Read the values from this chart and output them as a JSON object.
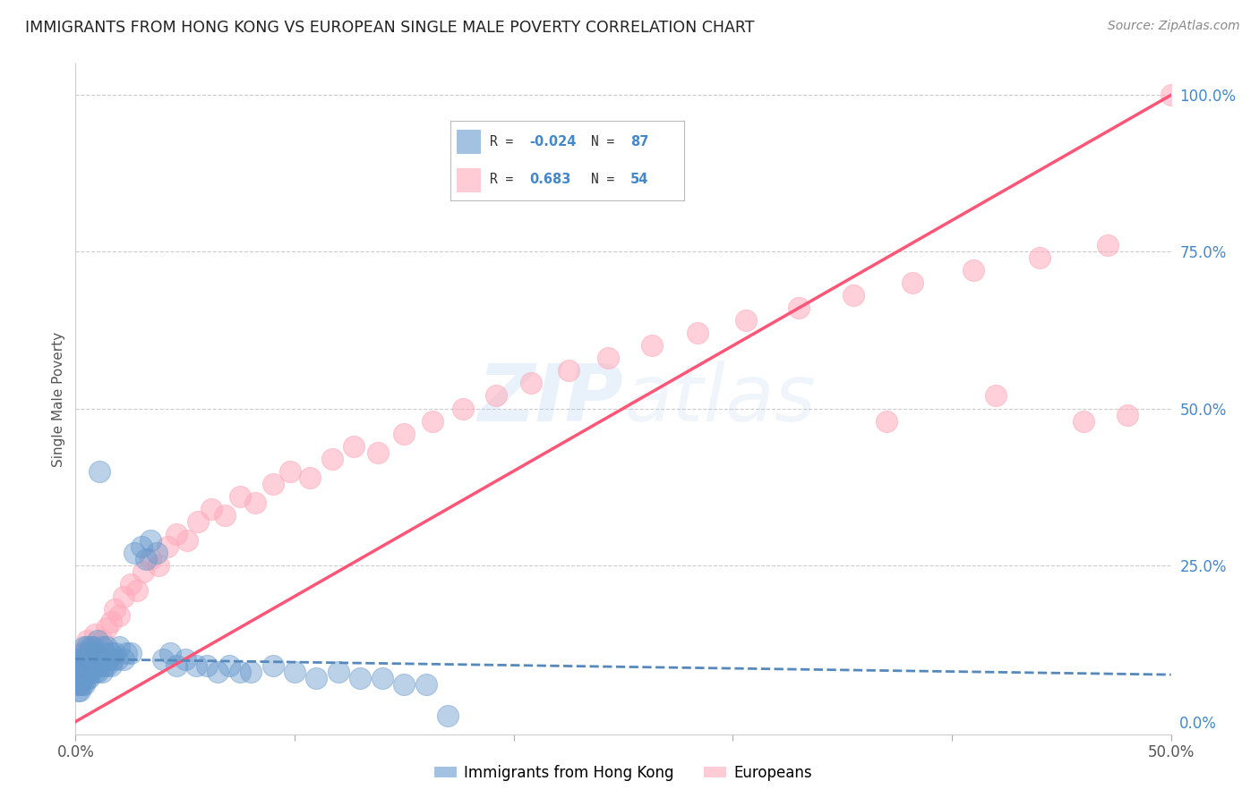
{
  "title": "IMMIGRANTS FROM HONG KONG VS EUROPEAN SINGLE MALE POVERTY CORRELATION CHART",
  "source": "Source: ZipAtlas.com",
  "ylabel": "Single Male Poverty",
  "xlim": [
    0.0,
    0.5
  ],
  "ylim": [
    -0.02,
    1.05
  ],
  "hk_color": "#6699cc",
  "eu_color": "#ffaabb",
  "hk_line_color": "#5588bb",
  "eu_line_color": "#ff5577",
  "hk_R": -0.024,
  "hk_N": 87,
  "eu_R": 0.683,
  "eu_N": 54,
  "legend_label_hk": "Immigrants from Hong Kong",
  "legend_label_eu": "Europeans",
  "watermark": "ZIPatlas",
  "hk_scatter_x": [
    0.0005,
    0.001,
    0.001,
    0.001,
    0.001,
    0.002,
    0.002,
    0.002,
    0.002,
    0.002,
    0.003,
    0.003,
    0.003,
    0.003,
    0.003,
    0.004,
    0.004,
    0.004,
    0.004,
    0.004,
    0.004,
    0.005,
    0.005,
    0.005,
    0.005,
    0.005,
    0.006,
    0.006,
    0.006,
    0.006,
    0.007,
    0.007,
    0.007,
    0.007,
    0.008,
    0.008,
    0.008,
    0.009,
    0.009,
    0.009,
    0.01,
    0.01,
    0.01,
    0.01,
    0.011,
    0.011,
    0.012,
    0.012,
    0.012,
    0.013,
    0.013,
    0.014,
    0.014,
    0.015,
    0.016,
    0.016,
    0.017,
    0.018,
    0.019,
    0.02,
    0.022,
    0.023,
    0.025,
    0.027,
    0.03,
    0.032,
    0.034,
    0.037,
    0.04,
    0.043,
    0.046,
    0.05,
    0.055,
    0.06,
    0.065,
    0.07,
    0.075,
    0.08,
    0.09,
    0.1,
    0.11,
    0.12,
    0.13,
    0.14,
    0.15,
    0.16,
    0.17
  ],
  "hk_scatter_y": [
    0.1,
    0.07,
    0.09,
    0.06,
    0.05,
    0.1,
    0.08,
    0.07,
    0.06,
    0.05,
    0.11,
    0.09,
    0.08,
    0.07,
    0.06,
    0.12,
    0.1,
    0.09,
    0.08,
    0.07,
    0.06,
    0.12,
    0.1,
    0.09,
    0.08,
    0.07,
    0.11,
    0.09,
    0.08,
    0.07,
    0.12,
    0.1,
    0.09,
    0.08,
    0.12,
    0.1,
    0.09,
    0.11,
    0.09,
    0.08,
    0.13,
    0.11,
    0.09,
    0.08,
    0.4,
    0.1,
    0.12,
    0.1,
    0.08,
    0.11,
    0.09,
    0.12,
    0.09,
    0.1,
    0.11,
    0.09,
    0.1,
    0.11,
    0.1,
    0.12,
    0.1,
    0.11,
    0.11,
    0.27,
    0.28,
    0.26,
    0.29,
    0.27,
    0.1,
    0.11,
    0.09,
    0.1,
    0.09,
    0.09,
    0.08,
    0.09,
    0.08,
    0.08,
    0.09,
    0.08,
    0.07,
    0.08,
    0.07,
    0.07,
    0.06,
    0.06,
    0.01
  ],
  "eu_scatter_x": [
    0.001,
    0.002,
    0.003,
    0.005,
    0.006,
    0.007,
    0.009,
    0.01,
    0.012,
    0.014,
    0.016,
    0.018,
    0.02,
    0.022,
    0.025,
    0.028,
    0.031,
    0.034,
    0.038,
    0.042,
    0.046,
    0.051,
    0.056,
    0.062,
    0.068,
    0.075,
    0.082,
    0.09,
    0.098,
    0.107,
    0.117,
    0.127,
    0.138,
    0.15,
    0.163,
    0.177,
    0.192,
    0.208,
    0.225,
    0.243,
    0.263,
    0.284,
    0.306,
    0.33,
    0.355,
    0.382,
    0.41,
    0.44,
    0.471,
    0.37,
    0.42,
    0.46,
    0.48,
    0.5
  ],
  "eu_scatter_y": [
    0.06,
    0.09,
    0.11,
    0.13,
    0.1,
    0.12,
    0.14,
    0.11,
    0.13,
    0.15,
    0.16,
    0.18,
    0.17,
    0.2,
    0.22,
    0.21,
    0.24,
    0.26,
    0.25,
    0.28,
    0.3,
    0.29,
    0.32,
    0.34,
    0.33,
    0.36,
    0.35,
    0.38,
    0.4,
    0.39,
    0.42,
    0.44,
    0.43,
    0.46,
    0.48,
    0.5,
    0.52,
    0.54,
    0.56,
    0.58,
    0.6,
    0.62,
    0.64,
    0.66,
    0.68,
    0.7,
    0.72,
    0.74,
    0.76,
    0.48,
    0.52,
    0.48,
    0.49,
    1.0
  ]
}
